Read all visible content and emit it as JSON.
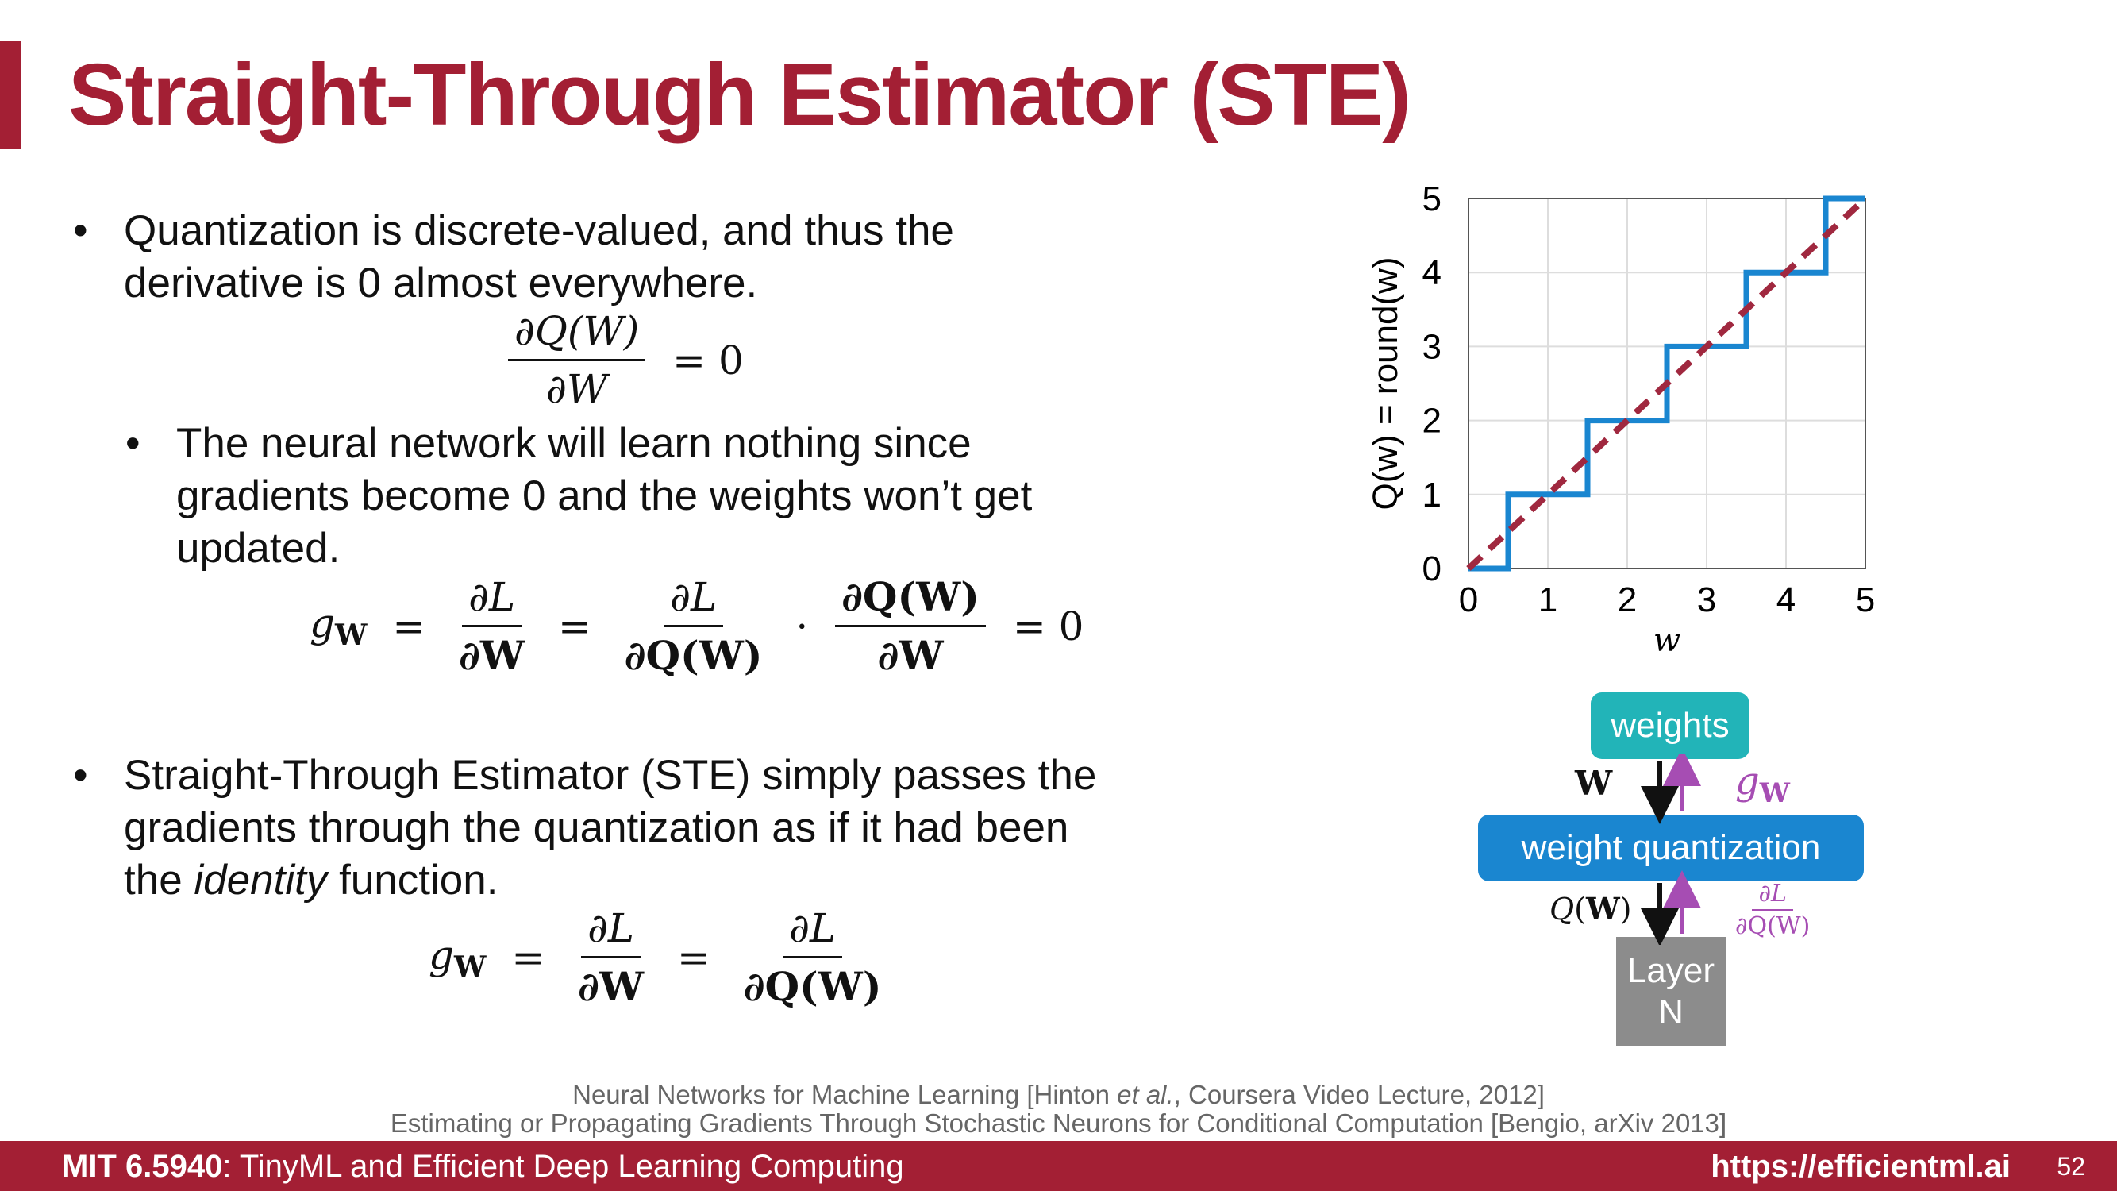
{
  "slide": {
    "title": "Straight-Through Estimator (STE)",
    "bullets": [
      {
        "line1": "Quantization is discrete-valued, and thus the",
        "line2": "derivative is 0 almost everywhere."
      },
      {
        "line1": "The neural network will learn nothing since",
        "line2": "gradients become 0 and the weights won’t get",
        "line3": "updated."
      },
      {
        "line1": "Straight-Through Estimator (STE) simply passes the",
        "line2": "gradients through the quantization as if it had been",
        "line3_pre": "the ",
        "line3_em": "identity",
        "line3_post": " function."
      }
    ],
    "bullet_symbol": "•",
    "references": [
      {
        "pre": "Neural Networks for Machine Learning [Hinton ",
        "em": "et al.",
        "post": ", Coursera Video Lecture, 2012]"
      },
      {
        "text": "Estimating or Propagating Gradients Through Stochastic Neurons for Conditional Computation [Bengio, arXiv 2013]"
      }
    ]
  },
  "equations": {
    "eq1": {
      "num": "∂Q(W)",
      "den": "∂W",
      "rhs": "= 0"
    },
    "eq2": {
      "lhs": "g",
      "lhs_sub": "W",
      "f1_num": "∂L",
      "f1_den": "∂W",
      "f2_num": "∂L",
      "f2_den": "∂Q(W)",
      "dot": "·",
      "f3_num": "∂Q(W)",
      "f3_den": "∂W",
      "rhs": "= 0"
    },
    "eq3": {
      "lhs": "g",
      "lhs_sub": "W",
      "f1_num": "∂L",
      "f1_den": "∂W",
      "f2_num": "∂L",
      "f2_den": "∂Q(W)"
    }
  },
  "chart_data": {
    "type": "line",
    "xlabel": "w",
    "ylabel": "Q(w) = round(w)",
    "xlim": [
      0,
      5
    ],
    "ylim": [
      0,
      5
    ],
    "xticks": [
      "0",
      "1",
      "2",
      "3",
      "4",
      "5"
    ],
    "yticks": [
      "0",
      "1",
      "2",
      "3",
      "4",
      "5"
    ],
    "grid": true,
    "series": [
      {
        "style": "step",
        "color": "#1a86d0",
        "x": [
          0,
          0.5,
          0.5,
          1.5,
          1.5,
          2.5,
          2.5,
          3.5,
          3.5,
          4.5,
          4.5,
          5
        ],
        "y": [
          0,
          0,
          1,
          1,
          2,
          2,
          3,
          3,
          4,
          4,
          5,
          5
        ]
      },
      {
        "style": "dashed",
        "color": "#a0283f",
        "x": [
          0,
          5
        ],
        "y": [
          0,
          5
        ]
      }
    ]
  },
  "diagram": {
    "weights_label": "weights",
    "quant_label": "weight quantization",
    "layer_label_1": "Layer",
    "layer_label_2": "N",
    "w_label": "W",
    "gw_label": "g",
    "gw_sub": "W",
    "qw_label": "Q(W)",
    "grad_num": "∂L",
    "grad_den": "∂Q(W)",
    "colors": {
      "weights": "#22b4b8",
      "quant": "#1a86d0",
      "layer": "#8c8c8c",
      "grad": "#a64db3"
    }
  },
  "footer": {
    "course_bold": "MIT 6.5940",
    "course_rest": ": TinyML and Efficient Deep Learning Computing",
    "url": "https://efficientml.ai",
    "page": "52"
  }
}
